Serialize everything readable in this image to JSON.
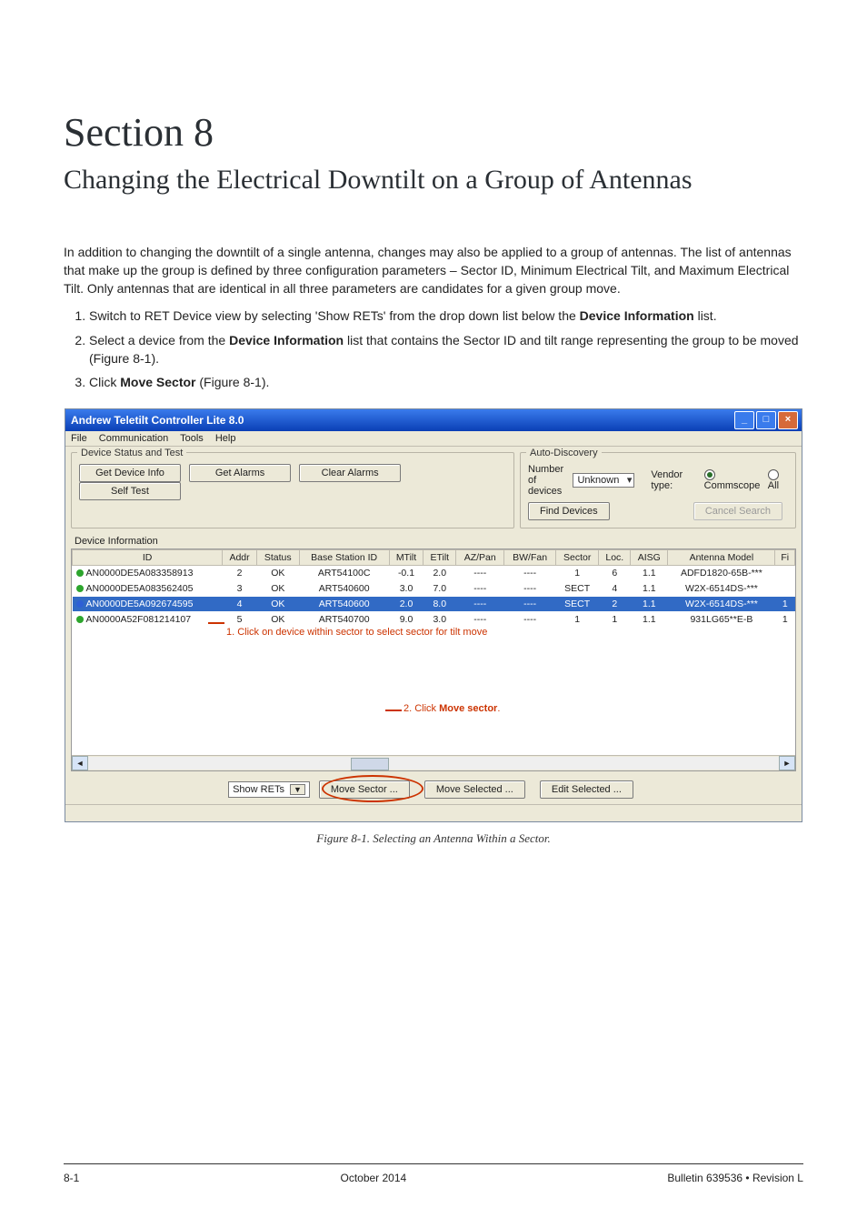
{
  "page": {
    "section_title": "Section 8",
    "section_subtitle": "Changing the Electrical Downtilt on a Group of Antennas",
    "intro": "In addition to changing the downtilt of a single antenna, changes may also be applied to a group of antennas. The list of antennas that make up the group is defined by three configuration parameters – Sector ID, Minimum Electrical Tilt, and Maximum Electrical Tilt. Only antennas that are identical in all three parameters are candidates for a given group move.",
    "steps": {
      "s1_a": "Switch to RET Device view by selecting 'Show RETs' from the drop down list below the ",
      "s1_b": "Device Information",
      "s1_c": " list.",
      "s2_a": "Select a device from the ",
      "s2_b": "Device Information",
      "s2_c": " list that contains the Sector ID and tilt range representing the group to be moved (Figure 8-1).",
      "s3_a": "Click ",
      "s3_b": "Move Sector",
      "s3_c": " (Figure 8-1)."
    },
    "figcaption": "Figure 8-1. Selecting an Antenna Within a Sector."
  },
  "window": {
    "title": "Andrew Teletilt Controller Lite 8.0",
    "menu": {
      "file": "File",
      "comm": "Communication",
      "tools": "Tools",
      "help": "Help"
    },
    "group_left_title": "Device Status and Test",
    "group_right_title": "Auto-Discovery",
    "buttons": {
      "get_device_info": "Get Device Info",
      "get_alarms": "Get Alarms",
      "clear_alarms": "Clear Alarms",
      "self_test": "Self Test",
      "find_devices": "Find Devices",
      "cancel_search": "Cancel Search",
      "move_sector": "Move Sector ...",
      "move_selected": "Move Selected ...",
      "edit_selected": "Edit Selected ..."
    },
    "auto": {
      "num_label": "Number of\ndevices",
      "num_value": "Unknown",
      "vendor_label": "Vendor type:",
      "radio1": "Commscope",
      "radio2": "All"
    },
    "show_rets": "Show RETs",
    "device_info_label": "Device Information",
    "grid": {
      "headers": [
        "ID",
        "Addr",
        "Status",
        "Base Station ID",
        "MTilt",
        "ETilt",
        "AZ/Pan",
        "BW/Fan",
        "Sector",
        "Loc.",
        "AISG",
        "Antenna Model",
        "Fi"
      ],
      "rows": [
        {
          "dot": "green",
          "id": "AN0000DE5A083358913",
          "addr": "2",
          "status": "OK",
          "bs": "ART54100C",
          "mtilt": "-0.1",
          "etilt": "2.0",
          "az": "----",
          "bw": "----",
          "sector": "1",
          "loc": "6",
          "aisg": "1.1",
          "model": "ADFD1820-65B-***",
          "fi": ""
        },
        {
          "dot": "green",
          "id": "AN0000DE5A083562405",
          "addr": "3",
          "status": "OK",
          "bs": "ART540600",
          "mtilt": "3.0",
          "etilt": "7.0",
          "az": "----",
          "bw": "----",
          "sector": "SECT",
          "loc": "4",
          "aisg": "1.1",
          "model": "W2X-6514DS-***",
          "fi": ""
        },
        {
          "dot": "blue",
          "id": "AN0000DE5A092674595",
          "addr": "4",
          "status": "OK",
          "bs": "ART540600",
          "mtilt": "2.0",
          "etilt": "8.0",
          "az": "----",
          "bw": "----",
          "sector": "SECT",
          "loc": "2",
          "aisg": "1.1",
          "model": "W2X-6514DS-***",
          "fi": "1"
        },
        {
          "dot": "green",
          "id": "AN0000A52F081214107",
          "addr": "5",
          "status": "OK",
          "bs": "ART540700",
          "mtilt": "9.0",
          "etilt": "3.0",
          "az": "----",
          "bw": "----",
          "sector": "1",
          "loc": "1",
          "aisg": "1.1",
          "model": "931LG65**E-B",
          "fi": "1"
        }
      ]
    },
    "callout1": "1. Click on device within sector to select sector for tilt move",
    "callout2_a": "2. Click ",
    "callout2_b": "Move sector",
    "callout2_c": "."
  },
  "footer": {
    "left": "8-1",
    "center": "October 2014",
    "right": "Bulletin 639536  •  Revision L"
  },
  "colors": {
    "accent_red": "#cc3300",
    "row_select": "#316ac5"
  }
}
